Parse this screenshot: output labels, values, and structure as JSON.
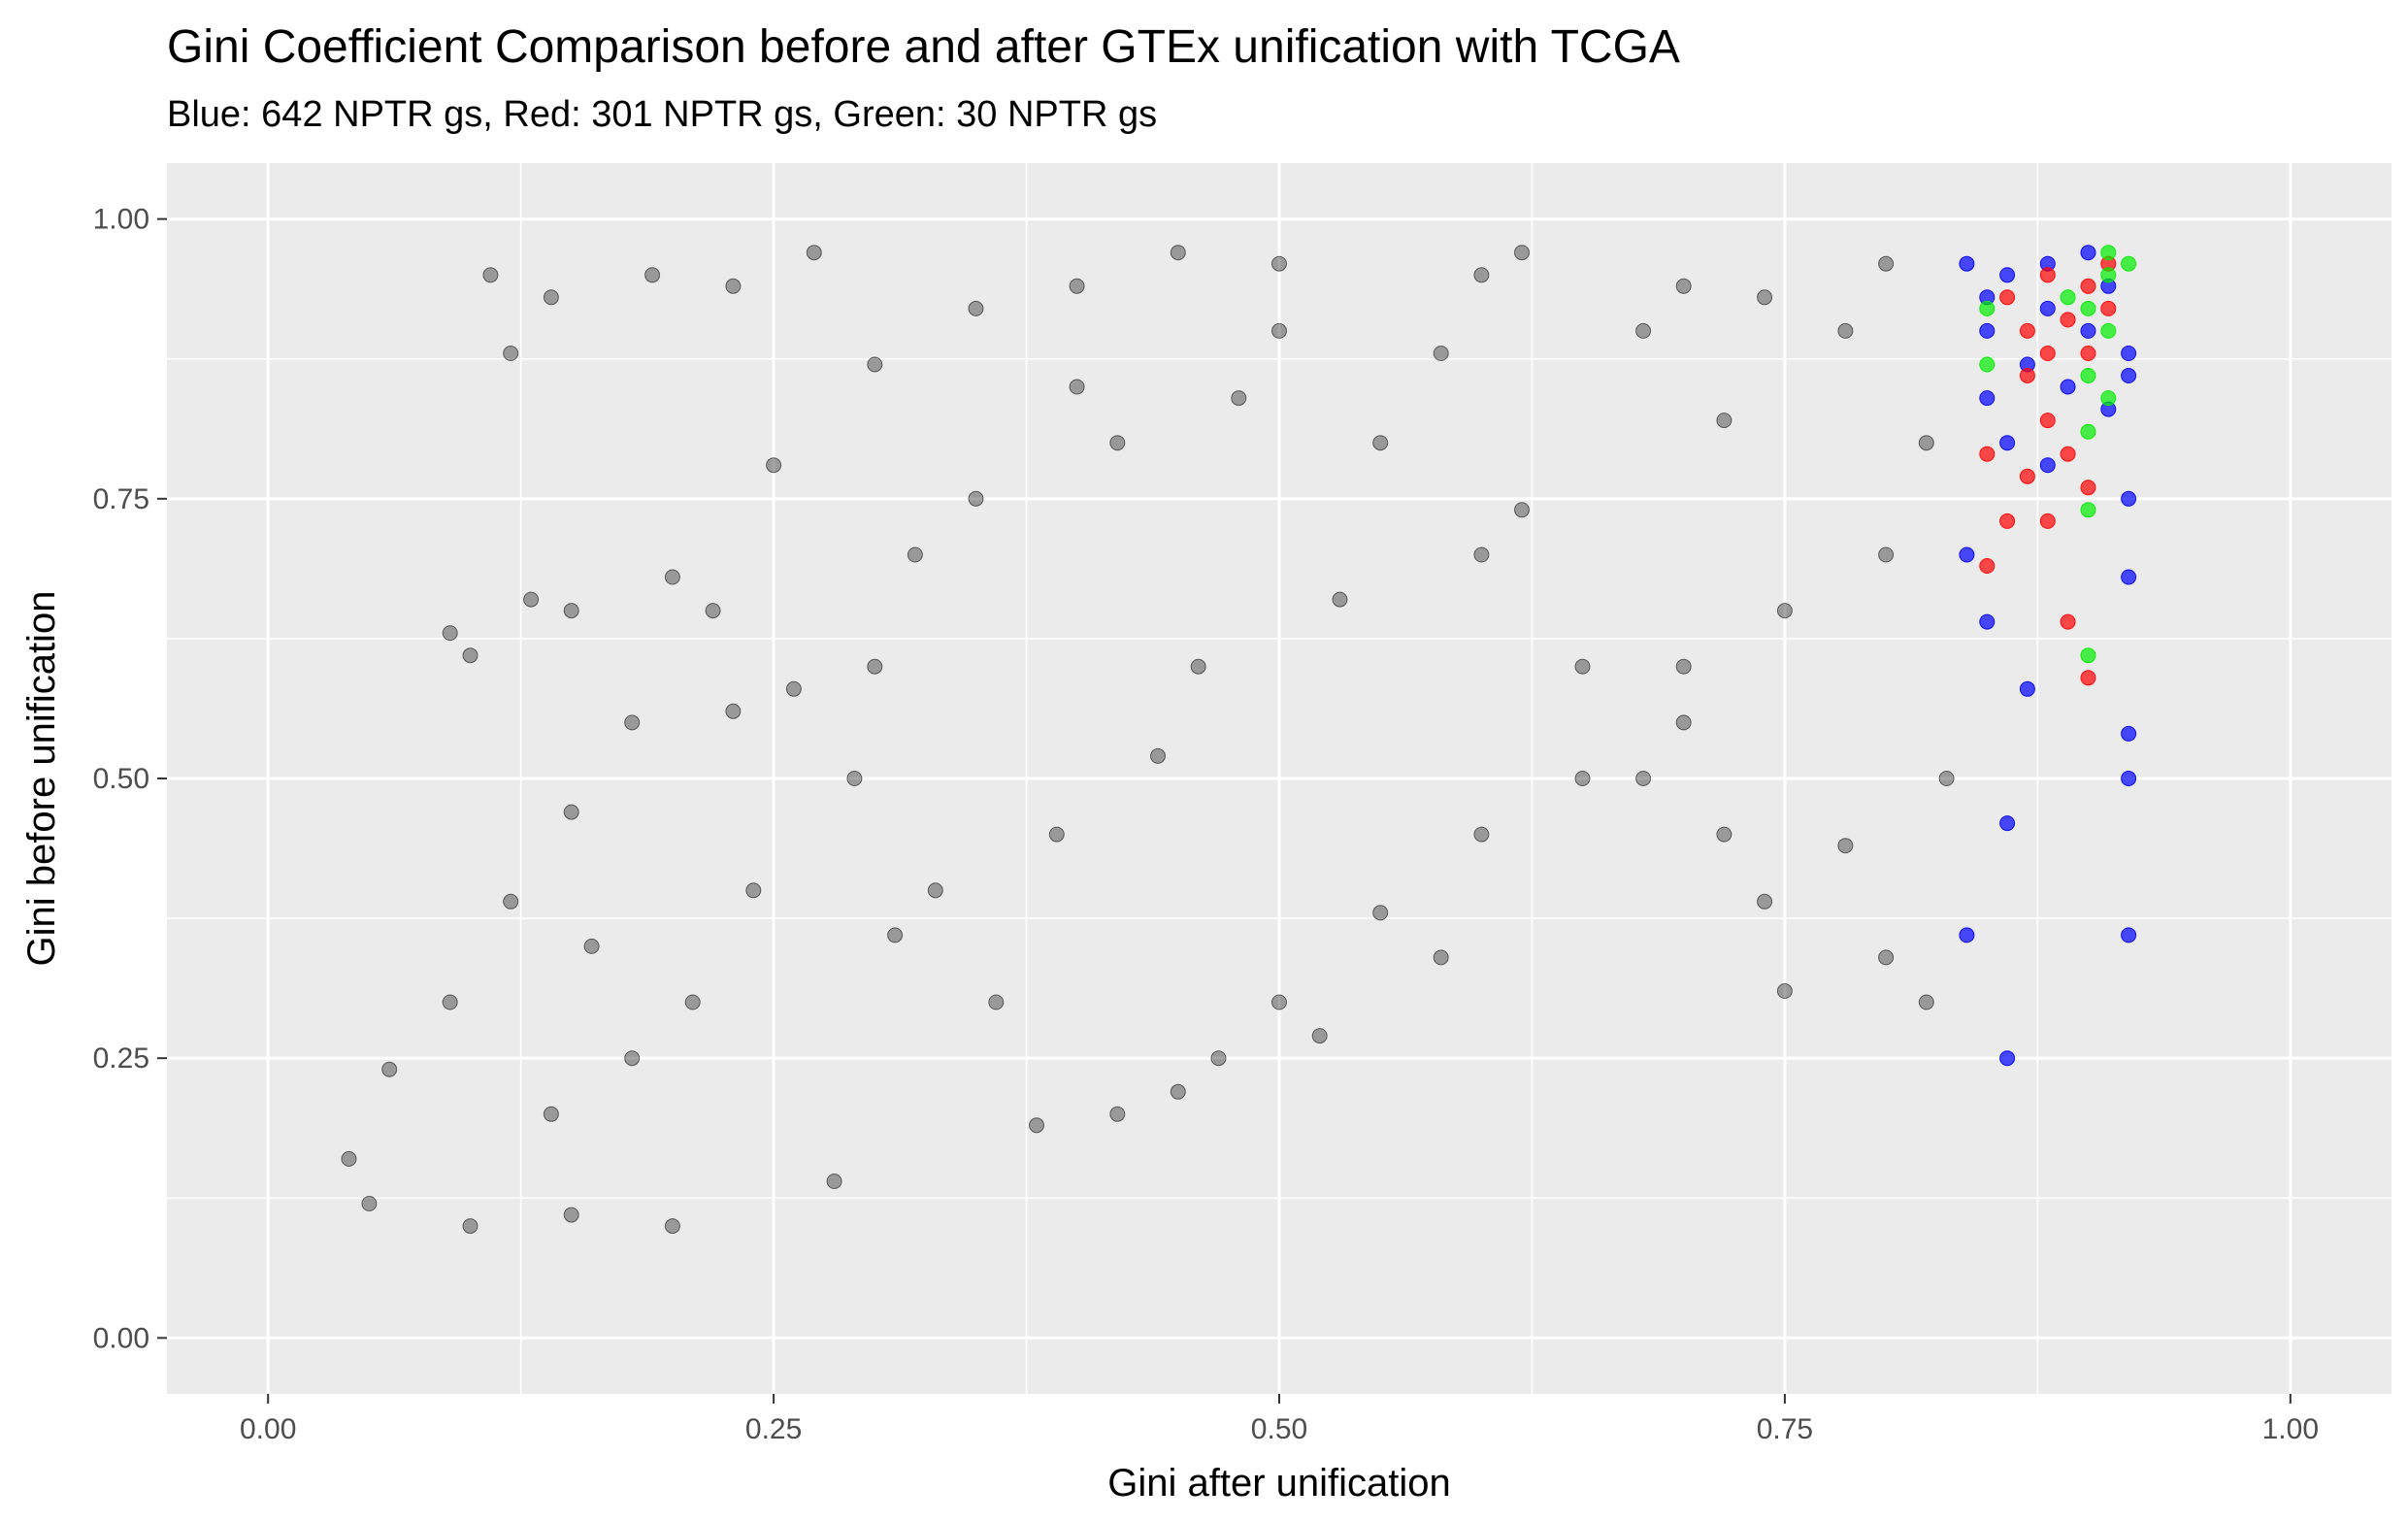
{
  "chart_data": {
    "type": "scatter",
    "title": "Gini Coefficient Comparison before and after GTEx unification with TCGA",
    "subtitle": "Blue: 642 NPTR gs, Red: 301 NPTR gs, Green: 30 NPTR gs",
    "xlabel": "Gini after unification",
    "ylabel": "Gini before unification",
    "xlim": [
      -0.05,
      1.05
    ],
    "ylim": [
      -0.05,
      1.05
    ],
    "x_ticks": [
      0.0,
      0.25,
      0.5,
      0.75,
      1.0
    ],
    "x_tick_labels": [
      "0.00",
      "0.25",
      "0.50",
      "0.75",
      "1.00"
    ],
    "y_ticks": [
      0.0,
      0.25,
      0.5,
      0.75,
      1.0
    ],
    "y_tick_labels": [
      "0.00",
      "0.25",
      "0.50",
      "0.75",
      "1.00"
    ],
    "grid": true,
    "legend": "none",
    "background": "#ebebeb",
    "series": [
      {
        "color": "#000000",
        "opacity": 0.35,
        "points": [
          [
            0.11,
            0.95
          ],
          [
            0.27,
            0.97
          ],
          [
            0.45,
            0.97
          ],
          [
            0.62,
            0.97
          ],
          [
            0.8,
            0.96
          ],
          [
            0.12,
            0.88
          ],
          [
            0.14,
            0.93
          ],
          [
            0.19,
            0.95
          ],
          [
            0.23,
            0.94
          ],
          [
            0.13,
            0.66
          ],
          [
            0.15,
            0.65
          ],
          [
            0.09,
            0.63
          ],
          [
            0.1,
            0.61
          ],
          [
            0.23,
            0.56
          ],
          [
            0.3,
            0.6
          ],
          [
            0.35,
            0.75
          ],
          [
            0.4,
            0.85
          ],
          [
            0.5,
            0.9
          ],
          [
            0.55,
            0.8
          ],
          [
            0.6,
            0.7
          ],
          [
            0.65,
            0.6
          ],
          [
            0.7,
            0.55
          ],
          [
            0.72,
            0.45
          ],
          [
            0.74,
            0.39
          ],
          [
            0.75,
            0.31
          ],
          [
            0.8,
            0.34
          ],
          [
            0.82,
            0.3
          ],
          [
            0.83,
            0.5
          ],
          [
            0.78,
            0.44
          ],
          [
            0.68,
            0.5
          ],
          [
            0.6,
            0.45
          ],
          [
            0.55,
            0.38
          ],
          [
            0.5,
            0.3
          ],
          [
            0.45,
            0.22
          ],
          [
            0.42,
            0.2
          ],
          [
            0.38,
            0.19
          ],
          [
            0.28,
            0.14
          ],
          [
            0.2,
            0.1
          ],
          [
            0.15,
            0.11
          ],
          [
            0.1,
            0.1
          ],
          [
            0.05,
            0.12
          ],
          [
            0.04,
            0.16
          ],
          [
            0.06,
            0.24
          ],
          [
            0.09,
            0.3
          ],
          [
            0.12,
            0.39
          ],
          [
            0.15,
            0.47
          ],
          [
            0.18,
            0.55
          ],
          [
            0.2,
            0.68
          ],
          [
            0.25,
            0.78
          ],
          [
            0.3,
            0.87
          ],
          [
            0.35,
            0.92
          ],
          [
            0.4,
            0.94
          ],
          [
            0.5,
            0.96
          ],
          [
            0.6,
            0.95
          ],
          [
            0.7,
            0.94
          ],
          [
            0.78,
            0.9
          ],
          [
            0.82,
            0.8
          ],
          [
            0.8,
            0.7
          ],
          [
            0.75,
            0.65
          ],
          [
            0.7,
            0.6
          ],
          [
            0.65,
            0.5
          ],
          [
            0.58,
            0.34
          ],
          [
            0.52,
            0.27
          ],
          [
            0.47,
            0.25
          ],
          [
            0.36,
            0.3
          ],
          [
            0.33,
            0.4
          ],
          [
            0.29,
            0.5
          ],
          [
            0.26,
            0.58
          ],
          [
            0.22,
            0.65
          ],
          [
            0.32,
            0.7
          ],
          [
            0.42,
            0.8
          ],
          [
            0.48,
            0.84
          ],
          [
            0.58,
            0.88
          ],
          [
            0.68,
            0.9
          ],
          [
            0.74,
            0.93
          ],
          [
            0.21,
            0.3
          ],
          [
            0.18,
            0.25
          ],
          [
            0.14,
            0.2
          ],
          [
            0.16,
            0.35
          ],
          [
            0.24,
            0.4
          ],
          [
            0.31,
            0.36
          ],
          [
            0.39,
            0.45
          ],
          [
            0.44,
            0.52
          ],
          [
            0.46,
            0.6
          ],
          [
            0.53,
            0.66
          ],
          [
            0.62,
            0.74
          ],
          [
            0.72,
            0.82
          ]
        ]
      },
      {
        "color": "#0000ff",
        "opacity": 0.7,
        "points": [
          [
            0.84,
            0.96
          ],
          [
            0.86,
            0.95
          ],
          [
            0.88,
            0.92
          ],
          [
            0.9,
            0.9
          ],
          [
            0.92,
            0.88
          ],
          [
            0.85,
            0.9
          ],
          [
            0.87,
            0.87
          ],
          [
            0.89,
            0.85
          ],
          [
            0.91,
            0.83
          ],
          [
            0.92,
            0.86
          ],
          [
            0.85,
            0.84
          ],
          [
            0.86,
            0.8
          ],
          [
            0.88,
            0.78
          ],
          [
            0.92,
            0.75
          ],
          [
            0.84,
            0.7
          ],
          [
            0.85,
            0.64
          ],
          [
            0.87,
            0.58
          ],
          [
            0.92,
            0.68
          ],
          [
            0.92,
            0.54
          ],
          [
            0.92,
            0.5
          ],
          [
            0.86,
            0.46
          ],
          [
            0.84,
            0.36
          ],
          [
            0.92,
            0.36
          ],
          [
            0.86,
            0.25
          ],
          [
            0.9,
            0.97
          ],
          [
            0.91,
            0.94
          ],
          [
            0.88,
            0.96
          ],
          [
            0.85,
            0.93
          ]
        ]
      },
      {
        "color": "#ff0000",
        "opacity": 0.7,
        "points": [
          [
            0.86,
            0.93
          ],
          [
            0.88,
            0.95
          ],
          [
            0.89,
            0.91
          ],
          [
            0.9,
            0.88
          ],
          [
            0.91,
            0.92
          ],
          [
            0.87,
            0.86
          ],
          [
            0.88,
            0.82
          ],
          [
            0.89,
            0.79
          ],
          [
            0.9,
            0.76
          ],
          [
            0.87,
            0.77
          ],
          [
            0.85,
            0.79
          ],
          [
            0.86,
            0.73
          ],
          [
            0.88,
            0.73
          ],
          [
            0.85,
            0.69
          ],
          [
            0.89,
            0.64
          ],
          [
            0.9,
            0.59
          ],
          [
            0.91,
            0.96
          ],
          [
            0.9,
            0.94
          ],
          [
            0.87,
            0.9
          ],
          [
            0.88,
            0.88
          ]
        ]
      },
      {
        "color": "#00ee00",
        "opacity": 0.7,
        "points": [
          [
            0.92,
            0.96
          ],
          [
            0.91,
            0.95
          ],
          [
            0.9,
            0.92
          ],
          [
            0.89,
            0.93
          ],
          [
            0.91,
            0.9
          ],
          [
            0.9,
            0.86
          ],
          [
            0.91,
            0.84
          ],
          [
            0.9,
            0.81
          ],
          [
            0.9,
            0.74
          ],
          [
            0.9,
            0.61
          ],
          [
            0.85,
            0.92
          ],
          [
            0.85,
            0.87
          ],
          [
            0.91,
            0.97
          ]
        ]
      }
    ]
  }
}
